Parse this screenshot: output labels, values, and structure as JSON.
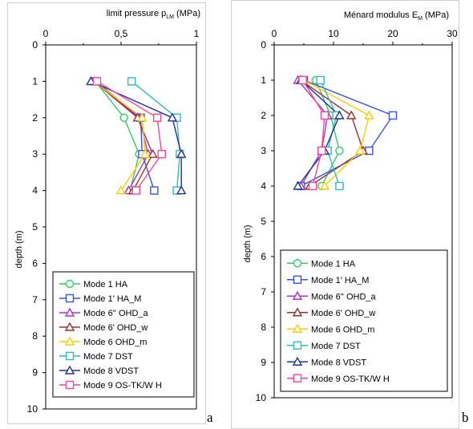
{
  "panel_labels": {
    "a": "a",
    "b": "b"
  },
  "chart_data": [
    {
      "type": "line",
      "title": "limit pressure p",
      "title_sub": "LM",
      "title_suffix": " (MPa)",
      "xlabel": "limit pressure pLM (MPa)",
      "ylabel": "depth (m)",
      "xlim": [
        0,
        1
      ],
      "ylim": [
        0,
        10
      ],
      "x_ticks": [
        "0",
        "0,5",
        "1"
      ],
      "x_tick_values": [
        0,
        0.5,
        1
      ],
      "y_ticks": [
        "0",
        "1",
        "2",
        "3",
        "4",
        "5",
        "6",
        "7",
        "8",
        "9",
        "10"
      ],
      "y_tick_values": [
        0,
        1,
        2,
        3,
        4,
        5,
        6,
        7,
        8,
        9,
        10
      ],
      "legend_position": "bottom",
      "grid": false,
      "series": [
        {
          "name": "Mode 1 HA",
          "color": "#33cc66",
          "marker": "circle",
          "x": [
            0.33,
            0.52,
            0.62,
            0.56
          ],
          "y": [
            1,
            2,
            3,
            4
          ]
        },
        {
          "name": "Mode 1' HA_M",
          "color": "#3355ee",
          "marker": "square",
          "x": [
            0.33,
            0.63,
            0.64,
            0.72
          ],
          "y": [
            1,
            2,
            3,
            4
          ]
        },
        {
          "name": "Mode 6'' OHD_a",
          "color": "#aa33cc",
          "marker": "triangle",
          "x": [
            0.32,
            0.62,
            0.68,
            0.55
          ],
          "y": [
            1,
            2,
            3,
            4
          ]
        },
        {
          "name": "Mode 6' OHD_w",
          "color": "#993333",
          "marker": "triangle",
          "x": [
            0.32,
            0.61,
            0.71,
            0.58
          ],
          "y": [
            1,
            2,
            3,
            4
          ]
        },
        {
          "name": "Mode 6 OHD_m",
          "color": "#ffcc00",
          "marker": "triangle",
          "x": [
            0.32,
            0.64,
            0.66,
            0.5
          ],
          "y": [
            1,
            2,
            3,
            4
          ]
        },
        {
          "name": "Mode 7 DST",
          "color": "#33bbbb",
          "marker": "square",
          "x": [
            0.57,
            0.87,
            0.89,
            0.87
          ],
          "y": [
            1,
            2,
            3,
            4
          ]
        },
        {
          "name": "Mode 8  VDST",
          "color": "#223399",
          "marker": "triangle",
          "x": [
            0.3,
            0.84,
            0.9,
            0.9
          ],
          "y": [
            1,
            2,
            3,
            4
          ]
        },
        {
          "name": "Mode 9 OS-TK/W H",
          "color": "#ff4499",
          "marker": "square",
          "x": [
            0.34,
            0.74,
            0.77,
            0.6
          ],
          "y": [
            1,
            2,
            3,
            4
          ]
        }
      ]
    },
    {
      "type": "line",
      "title": "Ménard modulus  E",
      "title_sub": "M",
      "title_suffix": " (MPa)",
      "xlabel": "Ménard modulus EM (MPa)",
      "ylabel": "depth (m)",
      "xlim": [
        0,
        30
      ],
      "ylim": [
        0,
        10
      ],
      "x_ticks": [
        "0",
        "10",
        "20",
        "30"
      ],
      "x_tick_values": [
        0,
        10,
        20,
        30
      ],
      "y_ticks": [
        "0",
        "1",
        "2",
        "3",
        "4",
        "5",
        "6",
        "7",
        "8",
        "9",
        "10"
      ],
      "y_tick_values": [
        0,
        1,
        2,
        3,
        4,
        5,
        6,
        7,
        8,
        9,
        10
      ],
      "legend_position": "bottom",
      "grid": false,
      "series": [
        {
          "name": "Mode 1 HA",
          "color": "#33cc66",
          "marker": "circle",
          "x": [
            7.0,
            9.5,
            11.0,
            8.0
          ],
          "y": [
            1,
            2,
            3,
            4
          ]
        },
        {
          "name": "Mode 1' HA_M",
          "color": "#3355ee",
          "marker": "square",
          "x": [
            5.0,
            20.0,
            16.0,
            4.5
          ],
          "y": [
            1,
            2,
            3,
            4
          ]
        },
        {
          "name": "Mode 6'' OHD_a",
          "color": "#aa33cc",
          "marker": "triangle",
          "x": [
            4.0,
            9.0,
            8.0,
            4.5
          ],
          "y": [
            1,
            2,
            3,
            4
          ]
        },
        {
          "name": "Mode 6' OHD_w",
          "color": "#993333",
          "marker": "triangle",
          "x": [
            4.5,
            13.0,
            15.0,
            6.0
          ],
          "y": [
            1,
            2,
            3,
            4
          ]
        },
        {
          "name": "Mode 6 OHD_m",
          "color": "#ffcc00",
          "marker": "triangle",
          "x": [
            5.0,
            16.0,
            14.5,
            8.5
          ],
          "y": [
            1,
            2,
            3,
            4
          ]
        },
        {
          "name": "Mode 7 DST",
          "color": "#33bbbb",
          "marker": "square",
          "x": [
            7.8,
            10.5,
            9.0,
            11.0
          ],
          "y": [
            1,
            2,
            3,
            4
          ]
        },
        {
          "name": "Mode 8  VDST",
          "color": "#223399",
          "marker": "triangle",
          "x": [
            4.5,
            11.0,
            8.5,
            4.0
          ],
          "y": [
            1,
            2,
            3,
            4
          ]
        },
        {
          "name": "Mode 9 OS-TK/W H",
          "color": "#ff4499",
          "marker": "square",
          "x": [
            4.8,
            8.5,
            8.0,
            6.5
          ],
          "y": [
            1,
            2,
            3,
            4
          ]
        }
      ]
    }
  ]
}
